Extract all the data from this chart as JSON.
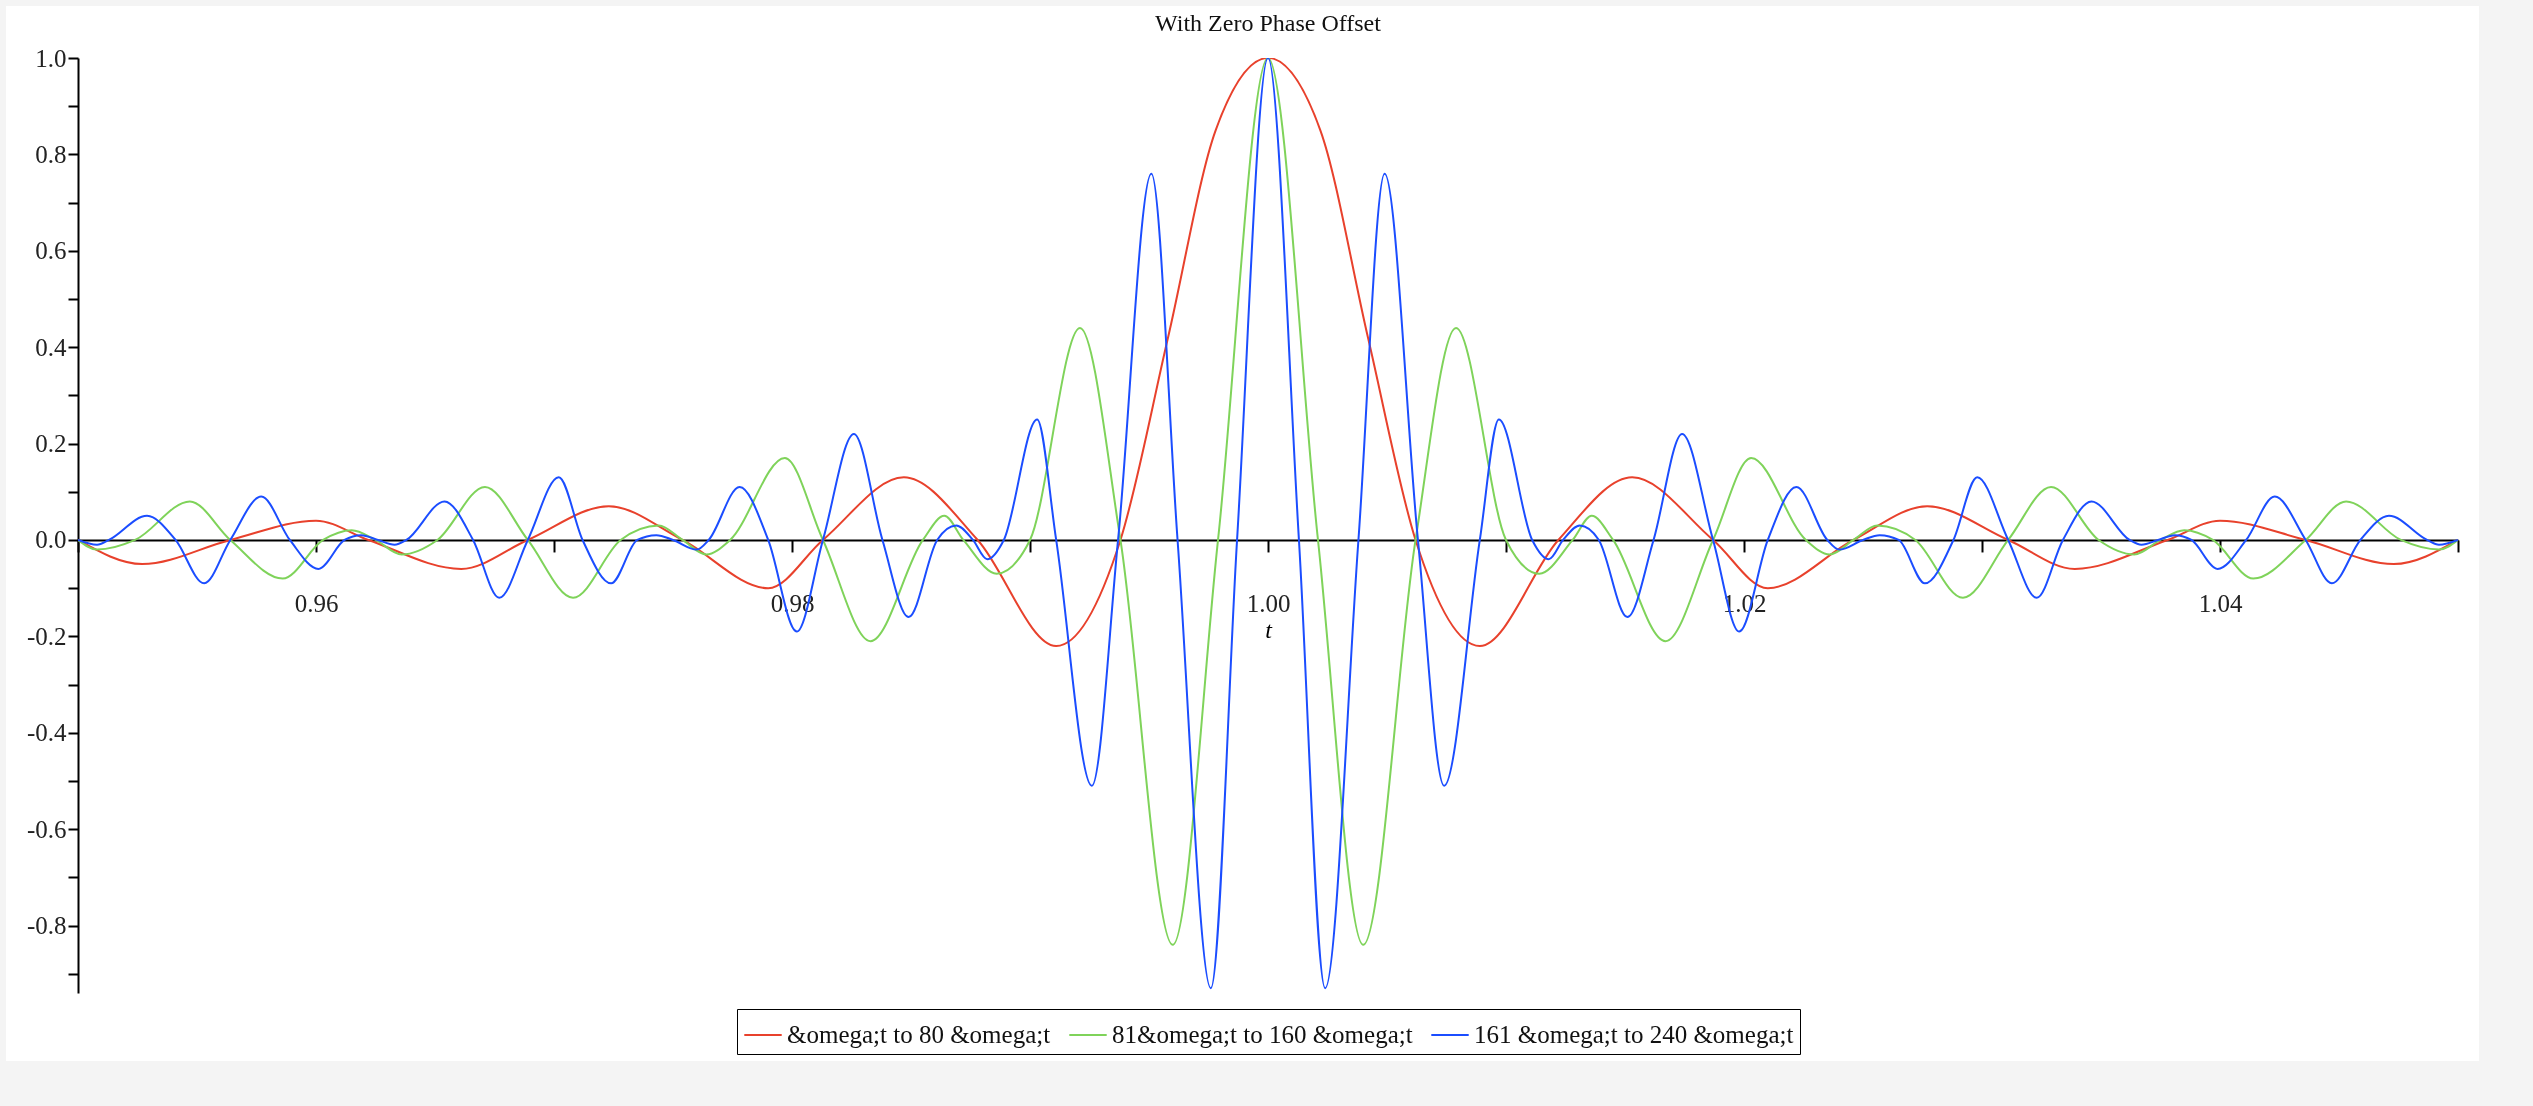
{
  "chart_data": {
    "type": "line",
    "title": "With Zero Phase Offset",
    "xlabel": "t",
    "xlim": [
      0.95,
      1.05
    ],
    "xticks": [
      {
        "value": 0.95,
        "label": null
      },
      0.96,
      {
        "value": 0.97,
        "label": null
      },
      0.98,
      {
        "value": 0.99,
        "label": null
      },
      {
        "value": 1.0,
        "label": "1.00"
      },
      {
        "value": 1.01,
        "label": null
      },
      1.02,
      {
        "value": 1.03,
        "label": null
      },
      1.04,
      {
        "value": 1.05,
        "label": null
      }
    ],
    "ylim": [
      -0.94,
      1.0
    ],
    "yticks": [
      {
        "value": -0.9,
        "label": null
      },
      -0.8,
      {
        "value": -0.7,
        "label": null
      },
      -0.6,
      {
        "value": -0.5,
        "label": null
      },
      -0.4,
      {
        "value": -0.3,
        "label": null
      },
      -0.2,
      {
        "value": -0.1,
        "label": null
      },
      {
        "value": 0,
        "label": "0.0"
      },
      {
        "value": 0.1,
        "label": null
      },
      0.2,
      {
        "value": 0.3,
        "label": null
      },
      0.4,
      {
        "value": 0.5,
        "label": null
      },
      0.6,
      {
        "value": 0.7,
        "label": null
      },
      0.8,
      {
        "value": 0.9,
        "label": null
      },
      {
        "value": 1.0,
        "label": "1.0"
      }
    ],
    "legend": "bottom",
    "series": [
      {
        "name": "&omega;t to 80 &omega;t",
        "color": "#e8412c",
        "x": [
          0.95,
          0.9527,
          0.9564,
          0.96,
          0.9622,
          0.9661,
          0.9689,
          0.9723,
          0.9754,
          0.979,
          0.9813,
          0.9847,
          0.9878,
          0.9911,
          0.9938,
          0.9958,
          0.9978,
          1.0,
          1.0022,
          1.0042,
          1.0062,
          1.0089,
          1.0122,
          1.0153,
          1.0187,
          1.021,
          1.0246,
          1.0277,
          1.0311,
          1.0339,
          1.0378,
          1.04,
          1.0436,
          1.0473,
          1.05
        ],
        "values": [
          0,
          -0.05,
          0,
          0.04,
          0,
          -0.06,
          0,
          0.07,
          0,
          -0.1,
          0,
          0.13,
          0,
          -0.22,
          0,
          0.42,
          0.85,
          1.0,
          0.85,
          0.42,
          0,
          -0.22,
          0,
          0.13,
          0,
          -0.1,
          0,
          0.07,
          0,
          -0.06,
          0,
          0.04,
          0,
          -0.05,
          0
        ]
      },
      {
        "name": "81&omega;t to 160 &omega;t",
        "color": "#7fd35a",
        "x": [
          0.95,
          0.9508,
          0.9524,
          0.9547,
          0.9564,
          0.9586,
          0.9603,
          0.9615,
          0.9625,
          0.9636,
          0.9651,
          0.9671,
          0.9689,
          0.9708,
          0.9728,
          0.9744,
          0.9754,
          0.9764,
          0.9774,
          0.9797,
          0.9813,
          0.9833,
          0.9855,
          0.9864,
          0.9872,
          0.9886,
          0.99,
          0.9921,
          0.9938,
          0.996,
          0.9979,
          1.0,
          1.0021,
          1.004,
          1.0062,
          1.0079,
          1.01,
          1.0114,
          1.0128,
          1.0136,
          1.0145,
          1.0167,
          1.0187,
          1.0203,
          1.0226,
          1.0236,
          1.0246,
          1.0256,
          1.0272,
          1.0292,
          1.0311,
          1.0329,
          1.0349,
          1.0364,
          1.0375,
          1.0385,
          1.0397,
          1.0414,
          1.0436,
          1.0453,
          1.0476,
          1.0492,
          1.05
        ],
        "values": [
          0,
          -0.02,
          0,
          0.08,
          0,
          -0.08,
          0,
          0.02,
          0,
          -0.03,
          0,
          0.11,
          0,
          -0.12,
          0,
          0.03,
          0,
          -0.03,
          0,
          0.17,
          0,
          -0.21,
          0,
          0.05,
          0,
          -0.07,
          0,
          0.44,
          0,
          -0.84,
          0,
          1.0,
          0,
          -0.84,
          0,
          0.44,
          0,
          -0.07,
          0,
          0.05,
          0,
          -0.21,
          0,
          0.17,
          0,
          -0.03,
          0,
          0.03,
          0,
          -0.12,
          0,
          0.11,
          0,
          -0.03,
          0,
          0.02,
          0,
          -0.08,
          0,
          0.08,
          0,
          -0.02,
          0
        ]
      },
      {
        "name": "161 &omega;t to 240 &omega;t",
        "color": "#1b4dff",
        "x": [
          0.95,
          0.9508,
          0.9513,
          0.9529,
          0.9541,
          0.9553,
          0.9564,
          0.9577,
          0.9589,
          0.9601,
          0.9612,
          0.9619,
          0.9626,
          0.9633,
          0.9638,
          0.9654,
          0.9666,
          0.9677,
          0.9689,
          0.9702,
          0.9712,
          0.9724,
          0.9735,
          0.9743,
          0.975,
          0.976,
          0.9765,
          0.9778,
          0.979,
          0.9802,
          0.9813,
          0.9826,
          0.9838,
          0.9849,
          0.9861,
          0.9869,
          0.9876,
          0.9882,
          0.9889,
          0.9903,
          0.9911,
          0.9926,
          0.9937,
          0.9951,
          0.9962,
          0.9976,
          0.9987,
          1.0,
          1.0013,
          1.0024,
          1.0038,
          1.0049,
          1.0063,
          1.0074,
          1.0089,
          1.0097,
          1.0111,
          1.0118,
          1.0124,
          1.0131,
          1.0139,
          1.0151,
          1.0162,
          1.0174,
          1.0187,
          1.0198,
          1.021,
          1.0222,
          1.0235,
          1.024,
          1.025,
          1.0257,
          1.0265,
          1.0276,
          1.0288,
          1.0298,
          1.0311,
          1.0323,
          1.0334,
          1.0346,
          1.0362,
          1.0367,
          1.0374,
          1.0381,
          1.0388,
          1.0399,
          1.0411,
          1.0423,
          1.0436,
          1.0447,
          1.0459,
          1.0471,
          1.0487,
          1.0492,
          1.05
        ],
        "values": [
          0,
          -0.01,
          0,
          0.05,
          0,
          -0.09,
          0,
          0.09,
          0,
          -0.06,
          0,
          0.01,
          0,
          -0.01,
          0,
          0.08,
          0,
          -0.12,
          0,
          0.13,
          0,
          -0.09,
          0,
          0.01,
          0,
          -0.02,
          0,
          0.11,
          0,
          -0.19,
          0,
          0.22,
          0,
          -0.16,
          0,
          0.03,
          0,
          -0.04,
          0,
          0.25,
          0,
          -0.51,
          0,
          0.76,
          0,
          -0.93,
          0,
          1.0,
          0,
          -0.93,
          0,
          0.76,
          0,
          -0.51,
          0,
          0.25,
          0,
          -0.04,
          0,
          0.03,
          0,
          -0.16,
          0,
          0.22,
          0,
          -0.19,
          0,
          0.11,
          0,
          -0.02,
          0,
          0.01,
          0,
          -0.09,
          0,
          0.13,
          0,
          -0.12,
          0,
          0.08,
          0,
          -0.01,
          0,
          0.01,
          0,
          -0.06,
          0,
          0.09,
          0,
          -0.09,
          0,
          0.05,
          0,
          -0.01,
          0
        ]
      }
    ]
  }
}
